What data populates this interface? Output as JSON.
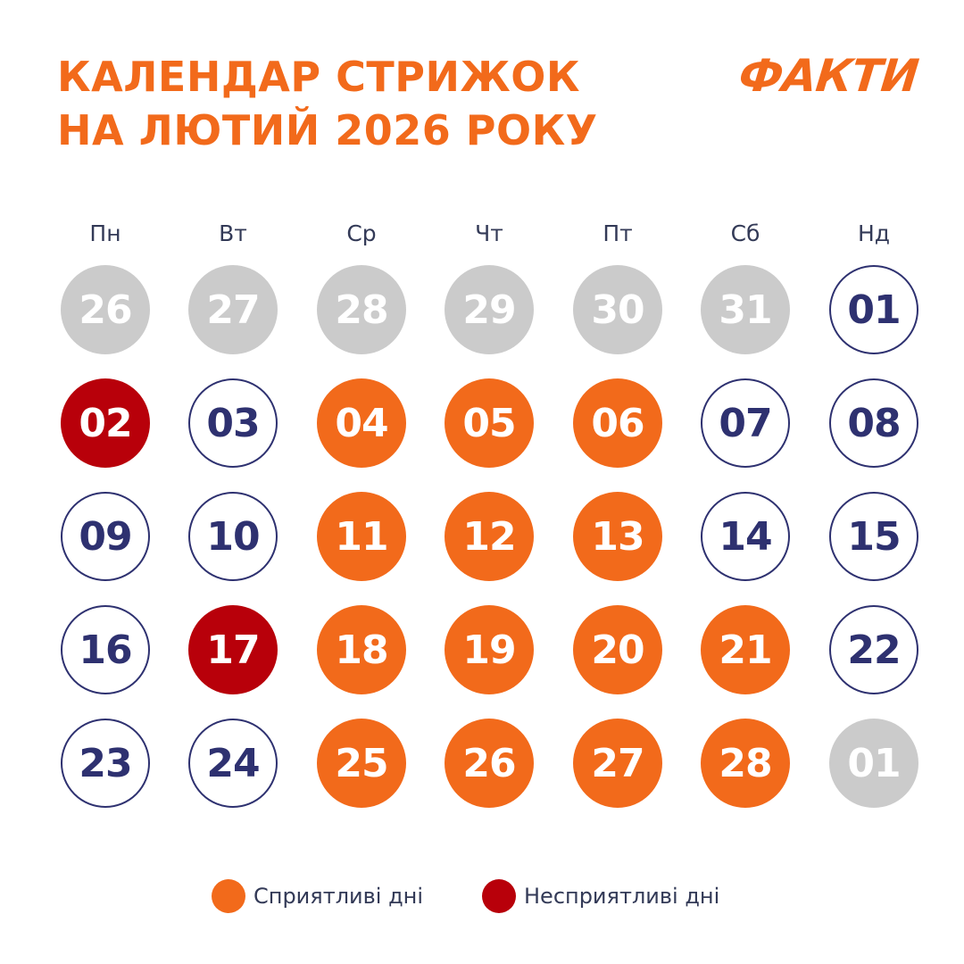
{
  "title": {
    "line1": "КАЛЕНДАР СТРИЖОК",
    "line2": "НА ЛЮТИЙ 2026 РОКУ"
  },
  "logo": "ФАКТИ",
  "weekdays": [
    "Пн",
    "Вт",
    "Ср",
    "Чт",
    "Пт",
    "Сб",
    "Нд"
  ],
  "weeks": [
    [
      {
        "day": "26",
        "status": "other"
      },
      {
        "day": "27",
        "status": "other"
      },
      {
        "day": "28",
        "status": "other"
      },
      {
        "day": "29",
        "status": "other"
      },
      {
        "day": "30",
        "status": "other"
      },
      {
        "day": "31",
        "status": "other"
      },
      {
        "day": "01",
        "status": "neutral"
      }
    ],
    [
      {
        "day": "02",
        "status": "unfavorable"
      },
      {
        "day": "03",
        "status": "neutral"
      },
      {
        "day": "04",
        "status": "favorable"
      },
      {
        "day": "05",
        "status": "favorable"
      },
      {
        "day": "06",
        "status": "favorable"
      },
      {
        "day": "07",
        "status": "neutral"
      },
      {
        "day": "08",
        "status": "neutral"
      }
    ],
    [
      {
        "day": "09",
        "status": "neutral"
      },
      {
        "day": "10",
        "status": "neutral"
      },
      {
        "day": "11",
        "status": "favorable"
      },
      {
        "day": "12",
        "status": "favorable"
      },
      {
        "day": "13",
        "status": "favorable"
      },
      {
        "day": "14",
        "status": "neutral"
      },
      {
        "day": "15",
        "status": "neutral"
      }
    ],
    [
      {
        "day": "16",
        "status": "neutral"
      },
      {
        "day": "17",
        "status": "unfavorable"
      },
      {
        "day": "18",
        "status": "favorable"
      },
      {
        "day": "19",
        "status": "favorable"
      },
      {
        "day": "20",
        "status": "favorable"
      },
      {
        "day": "21",
        "status": "favorable"
      },
      {
        "day": "22",
        "status": "neutral"
      }
    ],
    [
      {
        "day": "23",
        "status": "neutral"
      },
      {
        "day": "24",
        "status": "neutral"
      },
      {
        "day": "25",
        "status": "favorable"
      },
      {
        "day": "26",
        "status": "favorable"
      },
      {
        "day": "27",
        "status": "favorable"
      },
      {
        "day": "28",
        "status": "favorable"
      },
      {
        "day": "01",
        "status": "other"
      }
    ]
  ],
  "legend": {
    "favorable": {
      "label": "Сприятливі дні",
      "color": "#f26a1b"
    },
    "unfavorable": {
      "label": "Несприятливі дні",
      "color": "#b8000a"
    }
  },
  "colors": {
    "accent": "#f26a1b",
    "unfavorable": "#b8000a",
    "neutral_text": "#2e3170",
    "other_month": "#cbcbcb"
  }
}
